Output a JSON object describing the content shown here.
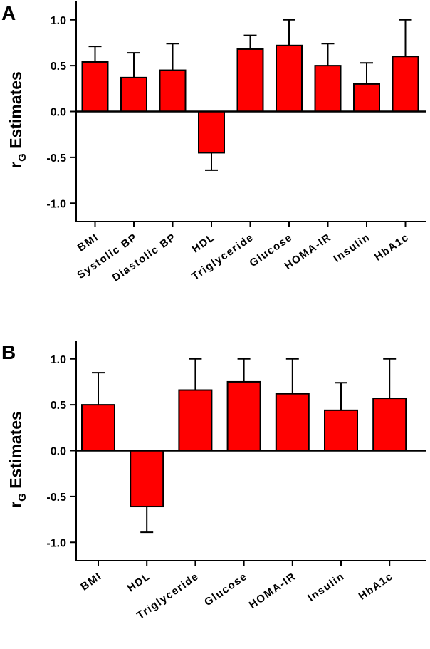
{
  "chart_data": [
    {
      "type": "bar",
      "panel": "A",
      "ylabel": {
        "main": "r",
        "sub": "G",
        "rest": " Estimates"
      },
      "ylim": [
        -1.2,
        1.2
      ],
      "yticks": [
        "1.0",
        "0.5",
        "0.0",
        "-0.5",
        "-1.0"
      ],
      "ytick_values": [
        1.0,
        0.5,
        0.0,
        -0.5,
        -1.0
      ],
      "categories": [
        "BMI",
        "Systolic BP",
        "Diastolic BP",
        "HDL",
        "Triglyceride",
        "Glucose",
        "HOMA-IR",
        "Insulin",
        "HbA1c"
      ],
      "values": [
        0.54,
        0.37,
        0.45,
        -0.45,
        0.68,
        0.72,
        0.5,
        0.3,
        0.6
      ],
      "error_ends": [
        0.71,
        0.64,
        0.74,
        -0.64,
        0.83,
        1.0,
        0.74,
        0.53,
        1.0
      ],
      "bar_color": "#ff0000",
      "grid": false
    },
    {
      "type": "bar",
      "panel": "B",
      "ylabel": {
        "main": "r",
        "sub": "G",
        "rest": " Estimates"
      },
      "ylim": [
        -1.2,
        1.2
      ],
      "yticks": [
        "1.0",
        "0.5",
        "0.0",
        "-0.5",
        "-1.0"
      ],
      "ytick_values": [
        1.0,
        0.5,
        0.0,
        -0.5,
        -1.0
      ],
      "categories": [
        "BMI",
        "HDL",
        "Triglyceride",
        "Glucose",
        "HOMA-IR",
        "Insulin",
        "HbA1c"
      ],
      "values": [
        0.5,
        -0.61,
        0.66,
        0.75,
        0.62,
        0.44,
        0.57
      ],
      "error_ends": [
        0.85,
        -0.89,
        1.0,
        1.0,
        1.0,
        0.74,
        1.0
      ],
      "bar_color": "#ff0000",
      "grid": false
    }
  ]
}
